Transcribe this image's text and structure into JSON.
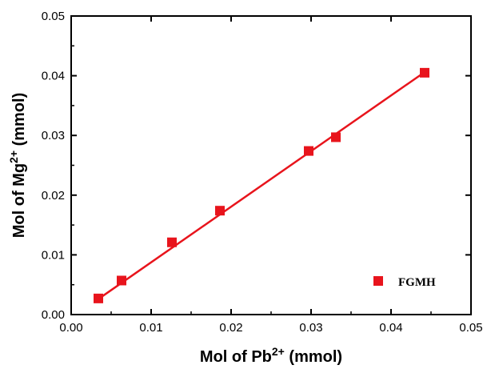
{
  "chart_data": {
    "type": "scatter",
    "xlabel": {
      "base": "Mol of Pb",
      "sup": "2+",
      "unit": " (mmol)"
    },
    "ylabel": {
      "base": "Mol of Mg",
      "sup": "2+",
      "unit": " (mmol)"
    },
    "xlim": [
      0.0,
      0.05
    ],
    "ylim": [
      0.0,
      0.05
    ],
    "xticks": [
      "0.00",
      "0.01",
      "0.02",
      "0.03",
      "0.04",
      "0.05"
    ],
    "yticks": [
      "0.00",
      "0.01",
      "0.02",
      "0.03",
      "0.04",
      "0.05"
    ],
    "grid": false,
    "legend": {
      "position": "bottom-right",
      "entries": [
        "FGMH"
      ]
    },
    "series": [
      {
        "name": "FGMH",
        "color": "#e8141c",
        "marker": "square",
        "x": [
          0.0034,
          0.0063,
          0.0126,
          0.0186,
          0.0297,
          0.0331,
          0.0442
        ],
        "y": [
          0.0027,
          0.0057,
          0.0121,
          0.0174,
          0.0274,
          0.0297,
          0.0405
        ],
        "fit_line": {
          "x": [
            0.0034,
            0.0442
          ],
          "y": [
            0.0026,
            0.0406
          ]
        }
      }
    ]
  }
}
